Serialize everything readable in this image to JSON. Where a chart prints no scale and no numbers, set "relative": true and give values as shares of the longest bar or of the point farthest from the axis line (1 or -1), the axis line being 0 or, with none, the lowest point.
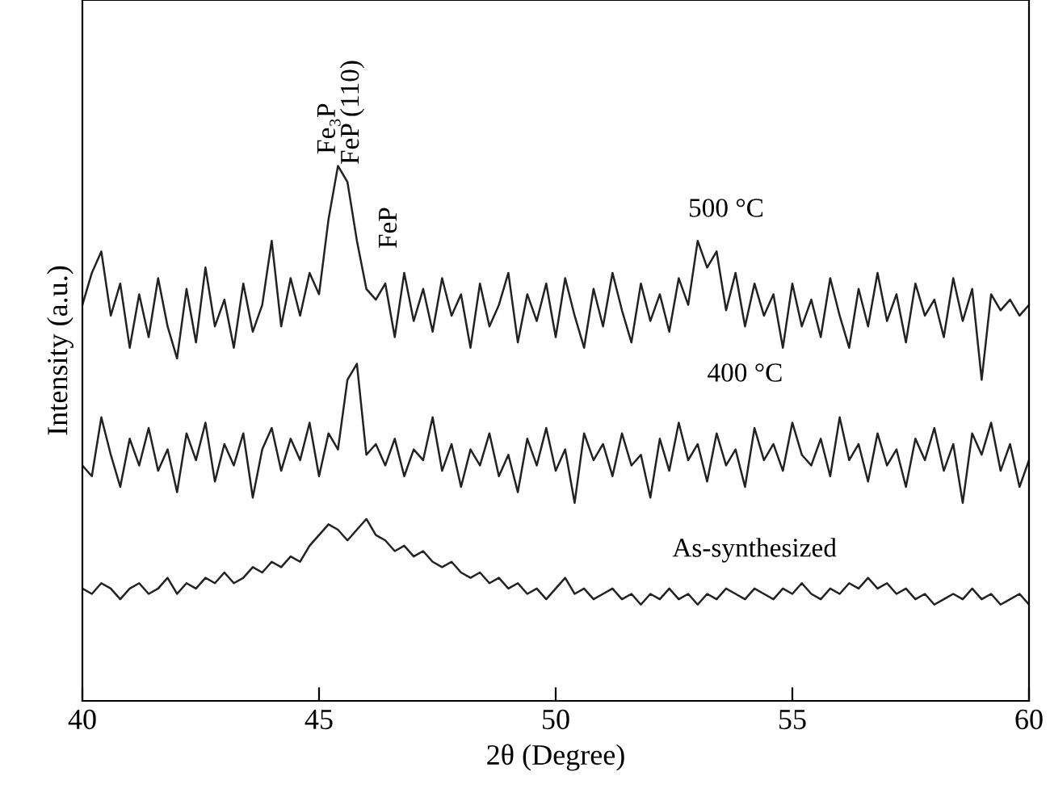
{
  "chart_data": {
    "type": "line",
    "relative": true,
    "xlabel": "2θ (Degree)",
    "ylabel": "Intensity (a.u.)",
    "xlim": [
      40,
      60
    ],
    "xticks": [
      40,
      45,
      50,
      55,
      60
    ],
    "grid": false,
    "marker": "none",
    "line_style": "solid",
    "x": [
      40.0,
      40.2,
      40.4,
      40.6,
      40.8,
      41.0,
      41.2,
      41.4,
      41.6,
      41.8,
      42.0,
      42.2,
      42.4,
      42.6,
      42.8,
      43.0,
      43.2,
      43.4,
      43.6,
      43.8,
      44.0,
      44.2,
      44.4,
      44.6,
      44.8,
      45.0,
      45.2,
      45.4,
      45.6,
      45.8,
      46.0,
      46.2,
      46.4,
      46.6,
      46.8,
      47.0,
      47.2,
      47.4,
      47.6,
      47.8,
      48.0,
      48.2,
      48.4,
      48.6,
      48.8,
      49.0,
      49.2,
      49.4,
      49.6,
      49.8,
      50.0,
      50.2,
      50.4,
      50.6,
      50.8,
      51.0,
      51.2,
      51.4,
      51.6,
      51.8,
      52.0,
      52.2,
      52.4,
      52.6,
      52.8,
      53.0,
      53.2,
      53.4,
      53.6,
      53.8,
      54.0,
      54.2,
      54.4,
      54.6,
      54.8,
      55.0,
      55.2,
      55.4,
      55.6,
      55.8,
      56.0,
      56.2,
      56.4,
      56.6,
      56.8,
      57.0,
      57.2,
      57.4,
      57.6,
      57.8,
      58.0,
      58.2,
      58.4,
      58.6,
      58.8,
      59.0,
      59.2,
      59.4,
      59.6,
      59.8,
      60.0
    ],
    "series": [
      {
        "color": "#222222",
        "values": [
          0.74,
          0.8,
          0.84,
          0.72,
          0.78,
          0.66,
          0.76,
          0.68,
          0.79,
          0.7,
          0.64,
          0.77,
          0.67,
          0.81,
          0.7,
          0.75,
          0.66,
          0.78,
          0.69,
          0.74,
          0.86,
          0.7,
          0.79,
          0.72,
          0.8,
          0.76,
          0.9,
          1.0,
          0.97,
          0.86,
          0.77,
          0.75,
          0.78,
          0.68,
          0.8,
          0.71,
          0.77,
          0.69,
          0.79,
          0.72,
          0.76,
          0.66,
          0.78,
          0.7,
          0.74,
          0.8,
          0.67,
          0.76,
          0.71,
          0.78,
          0.68,
          0.79,
          0.72,
          0.66,
          0.77,
          0.7,
          0.8,
          0.73,
          0.67,
          0.78,
          0.71,
          0.76,
          0.69,
          0.79,
          0.74,
          0.86,
          0.81,
          0.84,
          0.73,
          0.8,
          0.7,
          0.78,
          0.72,
          0.76,
          0.66,
          0.78,
          0.7,
          0.75,
          0.68,
          0.79,
          0.72,
          0.66,
          0.77,
          0.7,
          0.8,
          0.71,
          0.76,
          0.67,
          0.78,
          0.72,
          0.75,
          0.68,
          0.79,
          0.71,
          0.77,
          0.6,
          0.76,
          0.73,
          0.75,
          0.72,
          0.74
        ]
      },
      {
        "color": "#222222",
        "values": [
          0.44,
          0.42,
          0.53,
          0.46,
          0.4,
          0.49,
          0.44,
          0.51,
          0.43,
          0.47,
          0.39,
          0.5,
          0.45,
          0.52,
          0.41,
          0.48,
          0.44,
          0.5,
          0.38,
          0.47,
          0.51,
          0.43,
          0.49,
          0.45,
          0.52,
          0.42,
          0.5,
          0.47,
          0.6,
          0.63,
          0.46,
          0.48,
          0.44,
          0.49,
          0.42,
          0.47,
          0.45,
          0.53,
          0.43,
          0.48,
          0.4,
          0.47,
          0.44,
          0.5,
          0.42,
          0.46,
          0.39,
          0.49,
          0.44,
          0.51,
          0.43,
          0.47,
          0.37,
          0.5,
          0.45,
          0.48,
          0.42,
          0.5,
          0.44,
          0.46,
          0.38,
          0.49,
          0.43,
          0.52,
          0.45,
          0.48,
          0.41,
          0.5,
          0.44,
          0.47,
          0.4,
          0.51,
          0.45,
          0.48,
          0.43,
          0.52,
          0.46,
          0.44,
          0.49,
          0.42,
          0.53,
          0.45,
          0.48,
          0.41,
          0.5,
          0.44,
          0.47,
          0.4,
          0.49,
          0.45,
          0.51,
          0.43,
          0.48,
          0.37,
          0.5,
          0.46,
          0.52,
          0.43,
          0.48,
          0.4,
          0.45
        ]
      },
      {
        "color": "#222222",
        "values": [
          0.21,
          0.2,
          0.22,
          0.21,
          0.19,
          0.21,
          0.22,
          0.2,
          0.21,
          0.23,
          0.2,
          0.22,
          0.21,
          0.23,
          0.22,
          0.24,
          0.22,
          0.23,
          0.25,
          0.24,
          0.26,
          0.25,
          0.27,
          0.26,
          0.29,
          0.31,
          0.33,
          0.32,
          0.3,
          0.32,
          0.34,
          0.31,
          0.3,
          0.28,
          0.29,
          0.27,
          0.28,
          0.26,
          0.25,
          0.26,
          0.24,
          0.23,
          0.24,
          0.22,
          0.23,
          0.21,
          0.22,
          0.2,
          0.21,
          0.19,
          0.21,
          0.23,
          0.2,
          0.21,
          0.19,
          0.2,
          0.21,
          0.19,
          0.2,
          0.18,
          0.2,
          0.19,
          0.21,
          0.19,
          0.2,
          0.18,
          0.2,
          0.19,
          0.21,
          0.2,
          0.19,
          0.21,
          0.2,
          0.19,
          0.21,
          0.2,
          0.22,
          0.2,
          0.19,
          0.21,
          0.2,
          0.22,
          0.21,
          0.23,
          0.21,
          0.22,
          0.2,
          0.21,
          0.19,
          0.2,
          0.18,
          0.19,
          0.2,
          0.19,
          0.21,
          0.19,
          0.2,
          0.18,
          0.19,
          0.2,
          0.18
        ]
      }
    ],
    "annotations": [
      "Fe₃P",
      "FeP (110)",
      "FeP",
      "500 °C",
      "400 °C",
      "As-synthesized"
    ]
  }
}
